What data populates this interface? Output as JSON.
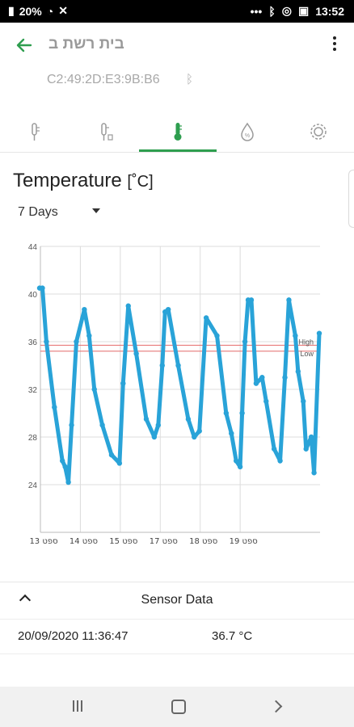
{
  "status_bar": {
    "battery": "20%",
    "time": "13:52"
  },
  "header": {
    "title": "בית רשת ב",
    "device_id": "C2:49:2D:E3:9B:B6"
  },
  "tabs": [
    {
      "name": "temperature-probe",
      "active": false
    },
    {
      "name": "dual-probe",
      "active": false
    },
    {
      "name": "temperature",
      "active": true
    },
    {
      "name": "humidity",
      "active": false
    },
    {
      "name": "settings",
      "active": false
    }
  ],
  "main": {
    "heading": "Temperature",
    "heading_unit": "[˚C]",
    "range": "7 Days"
  },
  "chart_data": {
    "type": "line",
    "title": "",
    "xlabel": "",
    "ylabel": "",
    "ylim": [
      20,
      44
    ],
    "yticks": [
      44,
      40,
      36,
      32,
      28,
      24
    ],
    "xlim": [
      13,
      20
    ],
    "xticks": [
      {
        "at": 13.0,
        "label": "13 ספט"
      },
      {
        "at": 14.0,
        "label": "14 ספט"
      },
      {
        "at": 15.0,
        "label": "15 ספט"
      },
      {
        "at": 16.0,
        "label": "17 ספט"
      },
      {
        "at": 17.0,
        "label": "18 ספט"
      },
      {
        "at": 18.0,
        "label": "19 ספט"
      }
    ],
    "grid": true,
    "thresholds": [
      {
        "label": "High",
        "value": 35.7,
        "color": "#e46a6a"
      },
      {
        "label": "Low",
        "value": 35.2,
        "color": "#e46a6a"
      }
    ],
    "series": [
      {
        "color": "#29a3d8",
        "x": [
          12.98,
          13.05,
          13.15,
          13.35,
          13.55,
          13.62,
          13.7,
          13.78,
          13.9,
          14.1,
          14.22,
          14.35,
          14.55,
          14.78,
          14.98,
          15.07,
          15.2,
          15.4,
          15.65,
          15.85,
          15.95,
          16.05,
          16.12,
          16.2,
          16.45,
          16.7,
          16.85,
          16.98,
          17.15,
          17.42,
          17.65,
          17.78,
          17.9,
          18.0,
          18.05,
          18.12,
          18.2,
          18.28,
          18.4,
          18.55,
          18.65,
          18.85,
          19.0,
          19.12,
          19.22,
          19.38,
          19.45,
          19.58,
          19.65,
          19.78,
          19.85,
          19.98
        ],
        "values": [
          40.5,
          40.5,
          36.0,
          30.5,
          26.0,
          25.5,
          24.2,
          29.0,
          36.0,
          38.7,
          36.5,
          32.0,
          29.0,
          26.5,
          25.8,
          32.5,
          39.0,
          35.0,
          29.5,
          28.0,
          29.0,
          34.0,
          38.5,
          38.7,
          34.0,
          29.5,
          28.0,
          28.5,
          38.0,
          36.5,
          30.0,
          28.3,
          26.0,
          25.5,
          30.0,
          36.0,
          39.5,
          39.5,
          32.5,
          33.0,
          31.0,
          27.0,
          26.0,
          33.0,
          39.5,
          36.5,
          33.5,
          31.0,
          27.0,
          28.0,
          25.0,
          36.7
        ]
      }
    ]
  },
  "sensor_data": {
    "title": "Sensor Data",
    "timestamp": "20/09/2020 11:36:47",
    "value": "36.7 °C"
  }
}
